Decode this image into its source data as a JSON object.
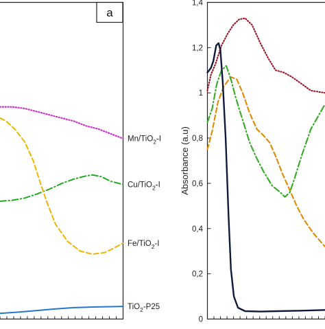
{
  "chart_data": [
    {
      "type": "line",
      "panel_label": "a",
      "title": "",
      "xlabel": "",
      "ylabel": "",
      "series": [
        {
          "name": "Mn/TiO2-I",
          "label_main": "Mn/TiO",
          "label_sub": "2",
          "label_tail": "-I",
          "color": "#cc33cc",
          "style": "dotted",
          "points": [
            [
              0.0,
              0.67
            ],
            [
              0.1,
              0.67
            ],
            [
              0.2,
              0.665
            ],
            [
              0.3,
              0.655
            ],
            [
              0.4,
              0.645
            ],
            [
              0.5,
              0.635
            ],
            [
              0.6,
              0.625
            ],
            [
              0.7,
              0.61
            ],
            [
              0.8,
              0.6
            ],
            [
              0.9,
              0.585
            ],
            [
              1.0,
              0.57
            ]
          ]
        },
        {
          "name": "Cu/TiO2-I",
          "label_main": "Cu/TiO",
          "label_sub": "2",
          "label_tail": "-I",
          "color": "#22aa22",
          "style": "dashdot",
          "points": [
            [
              0.0,
              0.372
            ],
            [
              0.1,
              0.375
            ],
            [
              0.2,
              0.382
            ],
            [
              0.3,
              0.395
            ],
            [
              0.4,
              0.41
            ],
            [
              0.5,
              0.428
            ],
            [
              0.6,
              0.442
            ],
            [
              0.7,
              0.452
            ],
            [
              0.75,
              0.455
            ],
            [
              0.82,
              0.45
            ],
            [
              0.9,
              0.435
            ],
            [
              1.0,
              0.425
            ]
          ]
        },
        {
          "name": "Fe/TiO2-I",
          "label_main": "Fe/TiO",
          "label_sub": "2",
          "label_tail": "-I",
          "color": "#f0b400",
          "style": "dashed",
          "points": [
            [
              0.0,
              0.635
            ],
            [
              0.05,
              0.625
            ],
            [
              0.12,
              0.6
            ],
            [
              0.2,
              0.56
            ],
            [
              0.27,
              0.5
            ],
            [
              0.32,
              0.44
            ],
            [
              0.38,
              0.37
            ],
            [
              0.45,
              0.3
            ],
            [
              0.55,
              0.245
            ],
            [
              0.65,
              0.215
            ],
            [
              0.75,
              0.205
            ],
            [
              0.85,
              0.21
            ],
            [
              0.93,
              0.225
            ],
            [
              1.0,
              0.24
            ]
          ]
        },
        {
          "name": "TiO2-P25",
          "label_main": "TiO",
          "label_sub": "2",
          "label_tail": "-P25",
          "color": "#2277cc",
          "style": "solid",
          "points": [
            [
              0.0,
              0.018
            ],
            [
              0.15,
              0.022
            ],
            [
              0.3,
              0.027
            ],
            [
              0.45,
              0.032
            ],
            [
              0.6,
              0.036
            ],
            [
              0.75,
              0.038
            ],
            [
              0.9,
              0.039
            ],
            [
              1.0,
              0.04
            ]
          ]
        }
      ]
    },
    {
      "type": "line",
      "title": "",
      "xlabel": "",
      "ylabel": "Absorbance (a.u)",
      "ylim": [
        0,
        1.4
      ],
      "yticks": [
        "0",
        "0,2",
        "0,4",
        "0,6",
        "0,8",
        "1",
        "1,2",
        "1,4"
      ],
      "series": [
        {
          "color": "#991122",
          "style": "dotted",
          "points": [
            [
              0.0,
              1.01
            ],
            [
              0.03,
              1.08
            ],
            [
              0.07,
              1.13
            ],
            [
              0.12,
              1.21
            ],
            [
              0.17,
              1.26
            ],
            [
              0.22,
              1.3
            ],
            [
              0.27,
              1.325
            ],
            [
              0.32,
              1.33
            ],
            [
              0.38,
              1.3
            ],
            [
              0.45,
              1.22
            ],
            [
              0.52,
              1.15
            ],
            [
              0.58,
              1.1
            ],
            [
              0.65,
              1.09
            ],
            [
              0.72,
              1.07
            ],
            [
              0.8,
              1.04
            ],
            [
              0.88,
              1.01
            ],
            [
              1.0,
              1.0
            ]
          ]
        },
        {
          "color": "#e08a00",
          "style": "dashed",
          "points": [
            [
              0.0,
              0.75
            ],
            [
              0.04,
              0.83
            ],
            [
              0.09,
              0.96
            ],
            [
              0.14,
              1.03
            ],
            [
              0.2,
              1.07
            ],
            [
              0.25,
              1.06
            ],
            [
              0.3,
              1.0
            ],
            [
              0.36,
              0.91
            ],
            [
              0.42,
              0.84
            ],
            [
              0.48,
              0.81
            ],
            [
              0.53,
              0.78
            ],
            [
              0.58,
              0.72
            ],
            [
              0.64,
              0.64
            ],
            [
              0.7,
              0.57
            ],
            [
              0.76,
              0.5
            ],
            [
              0.82,
              0.44
            ],
            [
              0.9,
              0.38
            ],
            [
              1.0,
              0.32
            ]
          ]
        },
        {
          "color": "#33aa22",
          "style": "dashdot",
          "points": [
            [
              0.0,
              0.87
            ],
            [
              0.04,
              0.93
            ],
            [
              0.08,
              1.04
            ],
            [
              0.12,
              1.1
            ],
            [
              0.16,
              1.12
            ],
            [
              0.2,
              1.06
            ],
            [
              0.24,
              0.98
            ],
            [
              0.3,
              0.88
            ],
            [
              0.36,
              0.78
            ],
            [
              0.42,
              0.71
            ],
            [
              0.48,
              0.65
            ],
            [
              0.55,
              0.59
            ],
            [
              0.62,
              0.56
            ],
            [
              0.66,
              0.54
            ],
            [
              0.7,
              0.56
            ],
            [
              0.74,
              0.62
            ],
            [
              0.8,
              0.72
            ],
            [
              0.88,
              0.84
            ],
            [
              1.0,
              0.95
            ]
          ]
        },
        {
          "color": "#0f1a3a",
          "style": "solid",
          "points": [
            [
              0.0,
              1.09
            ],
            [
              0.03,
              1.11
            ],
            [
              0.05,
              1.14
            ],
            [
              0.075,
              1.21
            ],
            [
              0.095,
              1.22
            ],
            [
              0.11,
              1.19
            ],
            [
              0.13,
              1.05
            ],
            [
              0.155,
              0.8
            ],
            [
              0.18,
              0.45
            ],
            [
              0.2,
              0.22
            ],
            [
              0.225,
              0.1
            ],
            [
              0.26,
              0.05
            ],
            [
              0.32,
              0.035
            ],
            [
              0.45,
              0.033
            ],
            [
              0.6,
              0.035
            ],
            [
              0.8,
              0.037
            ],
            [
              1.0,
              0.04
            ]
          ]
        }
      ]
    }
  ]
}
